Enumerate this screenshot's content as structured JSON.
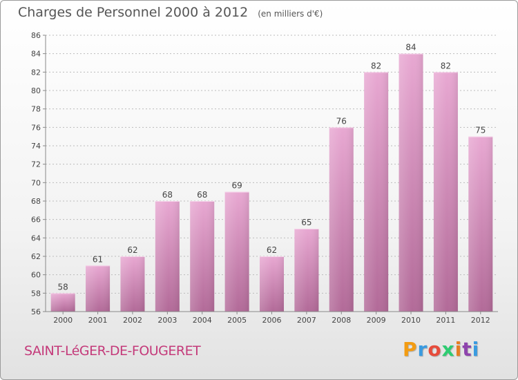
{
  "header": {
    "title": "Charges de Personnel 2000 à 2012",
    "subtitle": "(en milliers d'€)"
  },
  "footer": {
    "commune": "SAINT-LéGER-DE-FOUGERET",
    "logo": {
      "text": "Proxiti",
      "colors": [
        "#f39c12",
        "#3a9be0",
        "#e74c3c",
        "#2ecc71",
        "#e67e22",
        "#8e44ad",
        "#3a9be0"
      ]
    }
  },
  "colors": {
    "bar_top": "#e8a8d2",
    "bar_bottom": "#b26a98",
    "axis": "#888888",
    "grid": "#bbbbbb"
  },
  "chart_data": {
    "type": "bar",
    "title": "Charges de Personnel 2000 à 2012",
    "subtitle": "(en milliers d'€)",
    "categories": [
      "2000",
      "2001",
      "2002",
      "2003",
      "2004",
      "2005",
      "2006",
      "2007",
      "2008",
      "2009",
      "2010",
      "2011",
      "2012"
    ],
    "values": [
      58,
      61,
      62,
      68,
      68,
      69,
      62,
      65,
      76,
      82,
      84,
      82,
      75
    ],
    "ylim": [
      56,
      86
    ],
    "yticks": [
      56,
      58,
      60,
      62,
      64,
      66,
      68,
      70,
      72,
      74,
      76,
      78,
      80,
      82,
      84,
      86
    ],
    "grid": true,
    "data_labels": true
  }
}
